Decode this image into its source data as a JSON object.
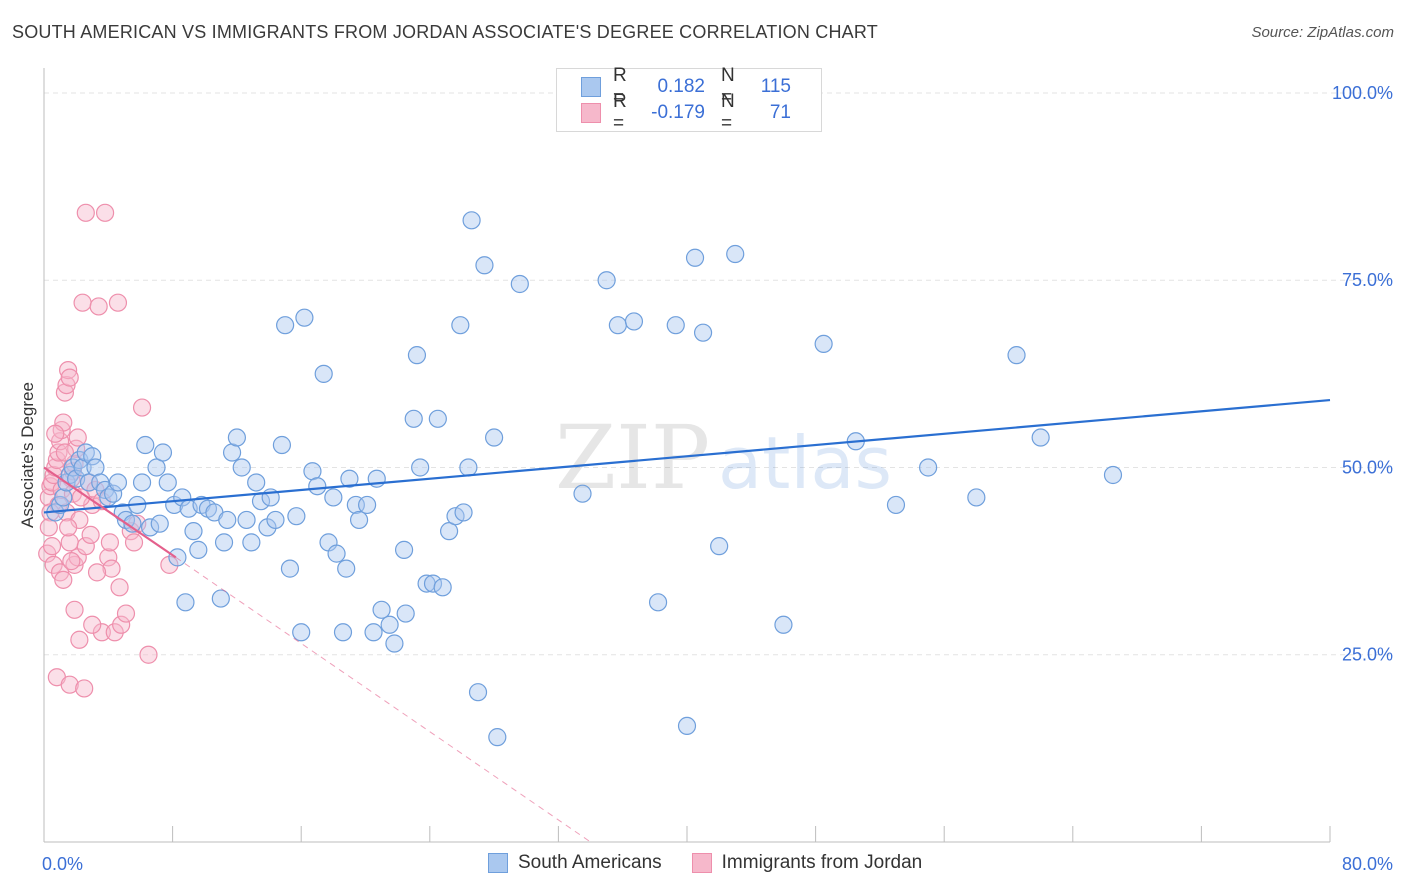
{
  "header": {
    "title": "SOUTH AMERICAN VS IMMIGRANTS FROM JORDAN ASSOCIATE'S DEGREE CORRELATION CHART",
    "source": "Source: ZipAtlas.com"
  },
  "watermark": {
    "zip": "ZIP",
    "atlas": "atlas"
  },
  "legend_top": {
    "rows": [
      {
        "r_label": "R =",
        "r_value": "0.182",
        "n_label": "N =",
        "n_value": "115"
      },
      {
        "r_label": "R =",
        "r_value": "-0.179",
        "n_label": "N =",
        "n_value": "71"
      }
    ]
  },
  "legend_bottom": {
    "items": [
      {
        "label": "South Americans"
      },
      {
        "label": "Immigrants from Jordan"
      }
    ]
  },
  "colors": {
    "blue_fill": "#aac8ef",
    "blue_stroke": "#6f9fdc",
    "blue_line": "#2a6fd1",
    "pink_fill": "#f6b8cb",
    "pink_stroke": "#ee8fac",
    "pink_line": "#e4608c",
    "axis_text": "#3b6fd6",
    "grid": "#e3e3e3"
  },
  "chart_data": {
    "type": "scatter",
    "title": "SOUTH AMERICAN VS IMMIGRANTS FROM JORDAN ASSOCIATE'S DEGREE CORRELATION CHART",
    "xlabel": "",
    "ylabel": "Associate's Degree",
    "xlim": [
      0,
      80
    ],
    "ylim": [
      0,
      102
    ],
    "x_tick_labels": [
      "0.0%",
      "80.0%"
    ],
    "y_ticks": [
      25,
      50,
      75,
      100
    ],
    "y_tick_labels": [
      "25.0%",
      "50.0%",
      "75.0%",
      "100.0%"
    ],
    "grid": true,
    "legend": "top-center",
    "series": [
      {
        "name": "South Americans",
        "r": 0.182,
        "n": 115,
        "trend": {
          "x": [
            0,
            80
          ],
          "y": [
            44.0,
            59.0
          ]
        },
        "points": [
          [
            0.7,
            44
          ],
          [
            1.0,
            45
          ],
          [
            1.2,
            46
          ],
          [
            1.4,
            48
          ],
          [
            1.6,
            49
          ],
          [
            1.8,
            50
          ],
          [
            2.0,
            48.5
          ],
          [
            2.2,
            51
          ],
          [
            2.4,
            50
          ],
          [
            2.6,
            52
          ],
          [
            2.8,
            48
          ],
          [
            3.0,
            51.5
          ],
          [
            3.2,
            50
          ],
          [
            3.5,
            48
          ],
          [
            3.8,
            47
          ],
          [
            4.0,
            46
          ],
          [
            4.3,
            46.5
          ],
          [
            4.6,
            48
          ],
          [
            4.9,
            44
          ],
          [
            5.1,
            43
          ],
          [
            5.5,
            42.5
          ],
          [
            5.8,
            45
          ],
          [
            6.1,
            48
          ],
          [
            6.3,
            53
          ],
          [
            6.6,
            42
          ],
          [
            7.0,
            50
          ],
          [
            7.2,
            42.5
          ],
          [
            7.4,
            52
          ],
          [
            7.7,
            48
          ],
          [
            8.1,
            45
          ],
          [
            8.3,
            38
          ],
          [
            8.6,
            46
          ],
          [
            8.8,
            32
          ],
          [
            9.0,
            44.5
          ],
          [
            9.3,
            41.5
          ],
          [
            9.6,
            39
          ],
          [
            9.8,
            45
          ],
          [
            10.2,
            44.5
          ],
          [
            10.6,
            44
          ],
          [
            11.0,
            32.5
          ],
          [
            11.2,
            40
          ],
          [
            11.4,
            43
          ],
          [
            11.7,
            52
          ],
          [
            12.0,
            54
          ],
          [
            12.3,
            50
          ],
          [
            12.6,
            43
          ],
          [
            12.9,
            40
          ],
          [
            13.2,
            48
          ],
          [
            13.5,
            45.5
          ],
          [
            13.9,
            42
          ],
          [
            14.1,
            46
          ],
          [
            14.4,
            43
          ],
          [
            14.8,
            53
          ],
          [
            15.0,
            69
          ],
          [
            15.3,
            36.5
          ],
          [
            15.7,
            43.5
          ],
          [
            16.0,
            28
          ],
          [
            16.2,
            70
          ],
          [
            16.7,
            49.5
          ],
          [
            17.0,
            47.5
          ],
          [
            17.4,
            62.5
          ],
          [
            17.7,
            40
          ],
          [
            18.0,
            46
          ],
          [
            18.2,
            38.5
          ],
          [
            18.6,
            28
          ],
          [
            18.8,
            36.5
          ],
          [
            19.0,
            48.5
          ],
          [
            19.4,
            45
          ],
          [
            19.6,
            43
          ],
          [
            20.1,
            45
          ],
          [
            20.5,
            28
          ],
          [
            20.7,
            48.5
          ],
          [
            21.0,
            31
          ],
          [
            21.5,
            29
          ],
          [
            21.8,
            26.5
          ],
          [
            22.4,
            39
          ],
          [
            22.5,
            30.5
          ],
          [
            23.0,
            56.5
          ],
          [
            23.2,
            65
          ],
          [
            23.4,
            50
          ],
          [
            23.8,
            34.5
          ],
          [
            24.2,
            34.5
          ],
          [
            24.5,
            56.5
          ],
          [
            24.8,
            34
          ],
          [
            25.2,
            41.5
          ],
          [
            25.6,
            43.5
          ],
          [
            25.9,
            69
          ],
          [
            26.1,
            44
          ],
          [
            26.4,
            50
          ],
          [
            26.6,
            83
          ],
          [
            27.0,
            20
          ],
          [
            27.4,
            77
          ],
          [
            28.0,
            54
          ],
          [
            28.2,
            14
          ],
          [
            29.6,
            74.5
          ],
          [
            33.5,
            46.5
          ],
          [
            35.0,
            75
          ],
          [
            35.7,
            69
          ],
          [
            36.7,
            69.5
          ],
          [
            38.2,
            32
          ],
          [
            39.3,
            69
          ],
          [
            40.0,
            15.5
          ],
          [
            40.5,
            78
          ],
          [
            41.0,
            68
          ],
          [
            42.0,
            39.5
          ],
          [
            43.0,
            78.5
          ],
          [
            46.0,
            29
          ],
          [
            48.5,
            66.5
          ],
          [
            50.5,
            53.5
          ],
          [
            53.0,
            45
          ],
          [
            55.0,
            50
          ],
          [
            58.0,
            46
          ],
          [
            60.5,
            65
          ],
          [
            62.0,
            54
          ],
          [
            66.5,
            49
          ]
        ]
      },
      {
        "name": "Immigrants from Jordan",
        "r": -0.179,
        "n": 71,
        "trend": {
          "x": [
            0,
            8.2
          ],
          "y": [
            50.0,
            38.0
          ],
          "dashed_x": [
            8.2,
            34.0
          ],
          "dashed_y": [
            38.0,
            0.0
          ]
        },
        "points": [
          [
            0.2,
            38.5
          ],
          [
            0.3,
            46
          ],
          [
            0.4,
            47.5
          ],
          [
            0.5,
            48
          ],
          [
            0.6,
            49
          ],
          [
            0.7,
            50
          ],
          [
            0.8,
            51
          ],
          [
            0.9,
            52
          ],
          [
            1.0,
            53.5
          ],
          [
            1.1,
            55
          ],
          [
            1.2,
            56
          ],
          [
            1.3,
            60
          ],
          [
            1.4,
            61
          ],
          [
            1.5,
            63
          ],
          [
            1.6,
            62
          ],
          [
            1.7,
            48.5
          ],
          [
            1.8,
            49.5
          ],
          [
            1.9,
            50.5
          ],
          [
            2.0,
            52.5
          ],
          [
            2.1,
            54
          ],
          [
            0.9,
            45
          ],
          [
            1.4,
            44
          ],
          [
            2.2,
            43
          ],
          [
            1.6,
            40
          ],
          [
            1.9,
            37
          ],
          [
            2.1,
            38
          ],
          [
            0.6,
            37
          ],
          [
            1.0,
            36
          ],
          [
            1.2,
            35
          ],
          [
            2.4,
            72
          ],
          [
            2.6,
            84
          ],
          [
            2.8,
            48
          ],
          [
            3.0,
            45
          ],
          [
            3.2,
            47
          ],
          [
            3.4,
            71.5
          ],
          [
            3.6,
            28
          ],
          [
            3.8,
            84
          ],
          [
            4.0,
            38
          ],
          [
            4.2,
            36.5
          ],
          [
            4.4,
            28
          ],
          [
            4.6,
            72
          ],
          [
            4.8,
            29
          ],
          [
            5.1,
            30.5
          ],
          [
            5.4,
            41.5
          ],
          [
            5.6,
            40
          ],
          [
            5.8,
            42.5
          ],
          [
            6.1,
            58
          ],
          [
            6.5,
            25
          ],
          [
            7.8,
            37
          ],
          [
            0.8,
            22
          ],
          [
            1.6,
            21
          ],
          [
            2.5,
            20.5
          ],
          [
            0.4,
            44
          ],
          [
            1.5,
            42
          ],
          [
            2.6,
            39.5
          ],
          [
            3.3,
            36
          ],
          [
            1.1,
            47
          ],
          [
            1.8,
            46.5
          ],
          [
            2.3,
            46
          ],
          [
            0.7,
            54.5
          ],
          [
            1.3,
            52
          ],
          [
            3.6,
            45.5
          ],
          [
            4.1,
            40
          ],
          [
            2.2,
            27
          ],
          [
            3.0,
            29
          ],
          [
            1.9,
            31
          ],
          [
            4.7,
            34
          ],
          [
            0.5,
            39.5
          ],
          [
            1.7,
            37.5
          ],
          [
            2.9,
            41
          ],
          [
            0.3,
            42
          ]
        ]
      }
    ]
  }
}
